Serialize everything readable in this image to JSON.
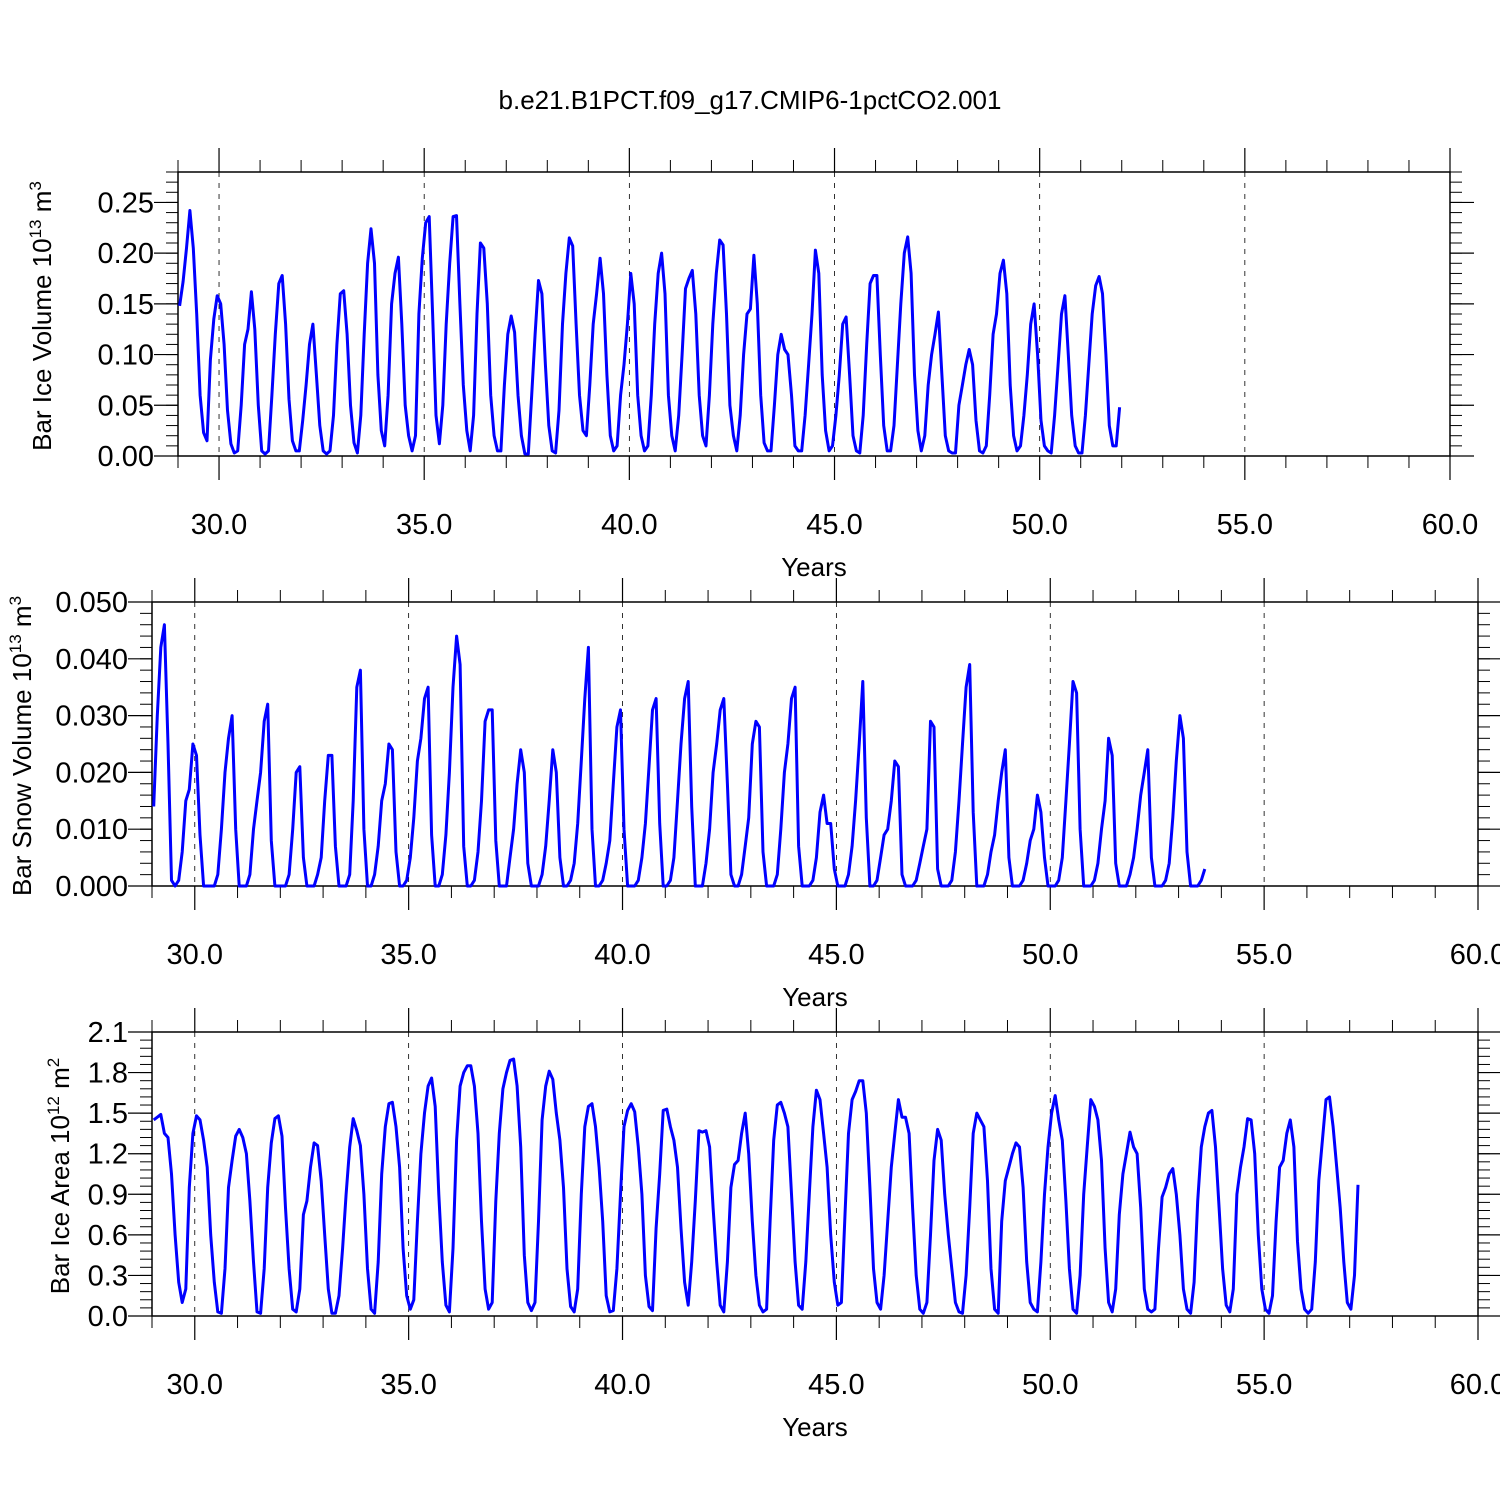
{
  "figure": {
    "title": "b.e21.B1PCT.f09_g17.CMIP6-1pctCO2.001",
    "line_color": "#0000ff"
  },
  "chart_data": [
    {
      "type": "line",
      "xlabel": "Years",
      "ylabel_main": "Bar Ice Volume 10",
      "ylabel_exp": "13",
      "ylabel_unit": " m",
      "ylabel_unit_exp": "3",
      "xlim": [
        29.0,
        60.0
      ],
      "ylim": [
        0.0,
        0.28
      ],
      "x_ticks": [
        "30.0",
        "35.0",
        "40.0",
        "45.0",
        "50.0",
        "55.0",
        "60.0"
      ],
      "y_ticks": [
        "0.00",
        "0.05",
        "0.10",
        "0.15",
        "0.20",
        "0.25"
      ],
      "y_tick_values": [
        0.0,
        0.05,
        0.1,
        0.15,
        0.2,
        0.25
      ],
      "grid": "dashed vertical at major x ticks",
      "series": [
        {
          "x_start": 29.04,
          "x_step": 0.0833,
          "values": [
            0.148,
            0.172,
            0.205,
            0.242,
            0.205,
            0.14,
            0.06,
            0.023,
            0.015,
            0.095,
            0.135,
            0.158,
            0.15,
            0.11,
            0.045,
            0.012,
            0.003,
            0.005,
            0.05,
            0.11,
            0.125,
            0.162,
            0.125,
            0.05,
            0.005,
            0.002,
            0.005,
            0.06,
            0.12,
            0.17,
            0.178,
            0.13,
            0.056,
            0.015,
            0.005,
            0.005,
            0.035,
            0.07,
            0.11,
            0.13,
            0.08,
            0.03,
            0.005,
            0.002,
            0.005,
            0.04,
            0.11,
            0.16,
            0.163,
            0.12,
            0.05,
            0.013,
            0.003,
            0.04,
            0.12,
            0.19,
            0.224,
            0.19,
            0.08,
            0.025,
            0.01,
            0.06,
            0.15,
            0.18,
            0.196,
            0.13,
            0.05,
            0.02,
            0.005,
            0.02,
            0.14,
            0.195,
            0.23,
            0.236,
            0.14,
            0.04,
            0.012,
            0.05,
            0.13,
            0.19,
            0.236,
            0.237,
            0.15,
            0.07,
            0.025,
            0.005,
            0.04,
            0.14,
            0.21,
            0.205,
            0.15,
            0.06,
            0.02,
            0.005,
            0.005,
            0.07,
            0.12,
            0.138,
            0.122,
            0.06,
            0.02,
            0.002,
            0.002,
            0.06,
            0.12,
            0.173,
            0.16,
            0.09,
            0.03,
            0.005,
            0.003,
            0.045,
            0.13,
            0.18,
            0.215,
            0.207,
            0.13,
            0.06,
            0.025,
            0.02,
            0.07,
            0.13,
            0.16,
            0.195,
            0.16,
            0.08,
            0.02,
            0.005,
            0.01,
            0.06,
            0.09,
            0.13,
            0.18,
            0.15,
            0.06,
            0.02,
            0.005,
            0.01,
            0.06,
            0.13,
            0.18,
            0.2,
            0.16,
            0.06,
            0.02,
            0.005,
            0.04,
            0.1,
            0.165,
            0.175,
            0.183,
            0.14,
            0.06,
            0.02,
            0.01,
            0.06,
            0.13,
            0.18,
            0.213,
            0.208,
            0.14,
            0.05,
            0.02,
            0.005,
            0.04,
            0.1,
            0.14,
            0.145,
            0.198,
            0.15,
            0.06,
            0.013,
            0.005,
            0.005,
            0.05,
            0.1,
            0.12,
            0.105,
            0.1,
            0.06,
            0.01,
            0.005,
            0.005,
            0.04,
            0.09,
            0.14,
            0.203,
            0.18,
            0.08,
            0.025,
            0.005,
            0.01,
            0.04,
            0.08,
            0.13,
            0.137,
            0.08,
            0.02,
            0.005,
            0.003,
            0.04,
            0.11,
            0.17,
            0.178,
            0.178,
            0.1,
            0.03,
            0.005,
            0.005,
            0.03,
            0.09,
            0.15,
            0.2,
            0.216,
            0.18,
            0.08,
            0.025,
            0.005,
            0.02,
            0.07,
            0.1,
            0.12,
            0.142,
            0.08,
            0.02,
            0.005,
            0.003,
            0.003,
            0.05,
            0.07,
            0.09,
            0.105,
            0.09,
            0.035,
            0.005,
            0.003,
            0.01,
            0.06,
            0.12,
            0.14,
            0.18,
            0.193,
            0.16,
            0.07,
            0.02,
            0.005,
            0.01,
            0.04,
            0.08,
            0.13,
            0.15,
            0.1,
            0.035,
            0.01,
            0.005,
            0.003,
            0.04,
            0.09,
            0.14,
            0.158,
            0.1,
            0.04,
            0.01,
            0.003,
            0.003,
            0.04,
            0.09,
            0.14,
            0.168,
            0.177,
            0.16,
            0.1,
            0.03,
            0.01,
            0.01,
            0.048
          ]
        }
      ]
    },
    {
      "type": "line",
      "xlabel": "Years",
      "ylabel_main": "Bar Snow Volume 10",
      "ylabel_exp": "13",
      "ylabel_unit": " m",
      "ylabel_unit_exp": "3",
      "xlim": [
        29.0,
        60.0
      ],
      "ylim": [
        0.0,
        0.05
      ],
      "x_ticks": [
        "30.0",
        "35.0",
        "40.0",
        "45.0",
        "50.0",
        "55.0",
        "60.0"
      ],
      "y_ticks": [
        "0.000",
        "0.010",
        "0.020",
        "0.030",
        "0.040",
        "0.050"
      ],
      "y_tick_values": [
        0.0,
        0.01,
        0.02,
        0.03,
        0.04,
        0.05
      ],
      "grid": "dashed vertical at major x ticks",
      "series": [
        {
          "x_start": 29.04,
          "x_step": 0.0833,
          "values": [
            0.014,
            0.03,
            0.042,
            0.046,
            0.025,
            0.001,
            0.0,
            0.001,
            0.006,
            0.015,
            0.017,
            0.025,
            0.023,
            0.009,
            0.0,
            0.0,
            0.0,
            0.0,
            0.002,
            0.01,
            0.02,
            0.026,
            0.03,
            0.01,
            0.0,
            0.0,
            0.0,
            0.002,
            0.01,
            0.015,
            0.02,
            0.029,
            0.032,
            0.008,
            0.0,
            0.0,
            0.0,
            0.0,
            0.002,
            0.01,
            0.02,
            0.021,
            0.005,
            0.0,
            0.0,
            0.0,
            0.002,
            0.005,
            0.015,
            0.023,
            0.023,
            0.007,
            0.0,
            0.0,
            0.0,
            0.002,
            0.015,
            0.035,
            0.038,
            0.01,
            0.0,
            0.0,
            0.002,
            0.007,
            0.015,
            0.018,
            0.025,
            0.024,
            0.006,
            0.0,
            0.0,
            0.001,
            0.005,
            0.012,
            0.022,
            0.026,
            0.033,
            0.035,
            0.009,
            0.0,
            0.0,
            0.002,
            0.009,
            0.02,
            0.035,
            0.044,
            0.039,
            0.007,
            0.0,
            0.0,
            0.001,
            0.006,
            0.015,
            0.029,
            0.031,
            0.031,
            0.008,
            0.0,
            0.0,
            0.0,
            0.005,
            0.01,
            0.018,
            0.024,
            0.02,
            0.004,
            0.0,
            0.0,
            0.0,
            0.002,
            0.007,
            0.015,
            0.024,
            0.02,
            0.005,
            0.0,
            0.0,
            0.001,
            0.004,
            0.011,
            0.022,
            0.033,
            0.042,
            0.01,
            0.0,
            0.0,
            0.001,
            0.004,
            0.008,
            0.018,
            0.028,
            0.031,
            0.01,
            0.0,
            0.0,
            0.0,
            0.001,
            0.005,
            0.011,
            0.021,
            0.031,
            0.033,
            0.011,
            0.0,
            0.0,
            0.001,
            0.005,
            0.015,
            0.025,
            0.033,
            0.036,
            0.014,
            0.0,
            0.0,
            0.0,
            0.004,
            0.01,
            0.02,
            0.025,
            0.031,
            0.033,
            0.018,
            0.002,
            0.0,
            0.0,
            0.002,
            0.007,
            0.012,
            0.025,
            0.029,
            0.028,
            0.006,
            0.0,
            0.0,
            0.0,
            0.002,
            0.01,
            0.02,
            0.025,
            0.033,
            0.035,
            0.007,
            0.0,
            0.0,
            0.0,
            0.001,
            0.005,
            0.013,
            0.016,
            0.011,
            0.011,
            0.003,
            0.0,
            0.0,
            0.0,
            0.002,
            0.007,
            0.015,
            0.025,
            0.036,
            0.012,
            0.0,
            0.0,
            0.001,
            0.005,
            0.009,
            0.01,
            0.015,
            0.022,
            0.021,
            0.002,
            0.0,
            0.0,
            0.0,
            0.001,
            0.004,
            0.007,
            0.01,
            0.029,
            0.028,
            0.003,
            0.0,
            0.0,
            0.0,
            0.001,
            0.006,
            0.015,
            0.025,
            0.035,
            0.039,
            0.013,
            0.0,
            0.0,
            0.0,
            0.002,
            0.006,
            0.009,
            0.015,
            0.02,
            0.024,
            0.005,
            0.0,
            0.0,
            0.0,
            0.001,
            0.004,
            0.008,
            0.01,
            0.016,
            0.013,
            0.005,
            0.0,
            0.0,
            0.0,
            0.001,
            0.005,
            0.015,
            0.025,
            0.036,
            0.034,
            0.01,
            0.0,
            0.0,
            0.0,
            0.001,
            0.004,
            0.01,
            0.015,
            0.026,
            0.023,
            0.004,
            0.0,
            0.0,
            0.0,
            0.002,
            0.005,
            0.01,
            0.016,
            0.02,
            0.024,
            0.005,
            0.0,
            0.0,
            0.0,
            0.001,
            0.004,
            0.012,
            0.022,
            0.03,
            0.026,
            0.006,
            0.0,
            0.0,
            0.0,
            0.001,
            0.003
          ]
        }
      ]
    },
    {
      "type": "line",
      "xlabel": "Years",
      "ylabel_main": "Bar Ice Area 10",
      "ylabel_exp": "12",
      "ylabel_unit": " m",
      "ylabel_unit_exp": "2",
      "xlim": [
        29.0,
        60.0
      ],
      "ylim": [
        0.0,
        2.1
      ],
      "x_ticks": [
        "30.0",
        "35.0",
        "40.0",
        "45.0",
        "50.0",
        "55.0",
        "60.0"
      ],
      "y_ticks": [
        "0.0",
        "0.3",
        "0.6",
        "0.9",
        "1.2",
        "1.5",
        "1.8",
        "2.1"
      ],
      "y_tick_values": [
        0.0,
        0.3,
        0.6,
        0.9,
        1.2,
        1.5,
        1.8,
        2.1
      ],
      "grid": "dashed vertical at major x ticks",
      "series": [
        {
          "x_start": 29.04,
          "x_step": 0.0833,
          "values": [
            1.45,
            1.47,
            1.49,
            1.35,
            1.32,
            1.05,
            0.6,
            0.25,
            0.1,
            0.2,
            0.95,
            1.35,
            1.48,
            1.45,
            1.3,
            1.1,
            0.6,
            0.25,
            0.03,
            0.02,
            0.35,
            0.95,
            1.15,
            1.33,
            1.38,
            1.32,
            1.2,
            0.85,
            0.4,
            0.03,
            0.02,
            0.35,
            0.95,
            1.28,
            1.46,
            1.48,
            1.33,
            0.8,
            0.35,
            0.05,
            0.03,
            0.2,
            0.75,
            0.85,
            1.1,
            1.28,
            1.26,
            1.0,
            0.6,
            0.2,
            0.02,
            0.02,
            0.15,
            0.5,
            0.9,
            1.25,
            1.46,
            1.37,
            1.26,
            0.9,
            0.35,
            0.05,
            0.02,
            0.4,
            1.05,
            1.4,
            1.57,
            1.58,
            1.4,
            1.1,
            0.5,
            0.15,
            0.05,
            0.12,
            0.7,
            1.2,
            1.5,
            1.7,
            1.76,
            1.55,
            0.9,
            0.4,
            0.08,
            0.03,
            0.5,
            1.3,
            1.7,
            1.8,
            1.85,
            1.85,
            1.7,
            1.35,
            0.7,
            0.2,
            0.05,
            0.1,
            0.85,
            1.35,
            1.68,
            1.8,
            1.89,
            1.9,
            1.7,
            1.25,
            0.45,
            0.1,
            0.04,
            0.1,
            0.7,
            1.45,
            1.7,
            1.81,
            1.75,
            1.5,
            1.3,
            0.95,
            0.35,
            0.07,
            0.03,
            0.2,
            0.9,
            1.4,
            1.55,
            1.57,
            1.4,
            1.1,
            0.7,
            0.15,
            0.03,
            0.04,
            0.35,
            0.9,
            1.4,
            1.52,
            1.57,
            1.51,
            1.25,
            0.9,
            0.3,
            0.07,
            0.04,
            0.65,
            1.05,
            1.52,
            1.53,
            1.4,
            1.3,
            1.1,
            0.65,
            0.25,
            0.08,
            0.4,
            0.85,
            1.37,
            1.36,
            1.37,
            1.25,
            0.8,
            0.4,
            0.08,
            0.03,
            0.4,
            0.95,
            1.12,
            1.15,
            1.35,
            1.5,
            1.2,
            0.7,
            0.3,
            0.08,
            0.03,
            0.05,
            0.7,
            1.3,
            1.56,
            1.58,
            1.5,
            1.4,
            0.9,
            0.4,
            0.08,
            0.05,
            0.4,
            0.9,
            1.4,
            1.67,
            1.6,
            1.35,
            1.1,
            0.6,
            0.25,
            0.08,
            0.1,
            0.75,
            1.35,
            1.6,
            1.66,
            1.74,
            1.74,
            1.5,
            0.95,
            0.35,
            0.1,
            0.05,
            0.3,
            0.7,
            1.1,
            1.35,
            1.6,
            1.47,
            1.47,
            1.35,
            0.8,
            0.3,
            0.05,
            0.02,
            0.1,
            0.6,
            1.15,
            1.38,
            1.3,
            0.9,
            0.6,
            0.35,
            0.1,
            0.03,
            0.02,
            0.3,
            0.8,
            1.35,
            1.5,
            1.45,
            1.4,
            1.0,
            0.35,
            0.05,
            0.02,
            0.7,
            1.0,
            1.1,
            1.2,
            1.28,
            1.25,
            0.95,
            0.4,
            0.1,
            0.05,
            0.03,
            0.4,
            0.9,
            1.25,
            1.5,
            1.63,
            1.45,
            1.3,
            0.85,
            0.35,
            0.05,
            0.02,
            0.3,
            0.9,
            1.25,
            1.6,
            1.55,
            1.45,
            1.15,
            0.5,
            0.1,
            0.03,
            0.2,
            0.75,
            1.05,
            1.2,
            1.36,
            1.25,
            1.2,
            0.8,
            0.2,
            0.05,
            0.03,
            0.05,
            0.5,
            0.88,
            0.95,
            1.05,
            1.09,
            0.9,
            0.6,
            0.2,
            0.05,
            0.02,
            0.25,
            0.85,
            1.25,
            1.4,
            1.5,
            1.52,
            1.25,
            0.8,
            0.35,
            0.08,
            0.03,
            0.2,
            0.9,
            1.1,
            1.25,
            1.46,
            1.45,
            1.2,
            0.6,
            0.2,
            0.05,
            0.02,
            0.15,
            0.7,
            1.1,
            1.15,
            1.35,
            1.45,
            1.25,
            0.55,
            0.2,
            0.05,
            0.02,
            0.05,
            0.4,
            1.0,
            1.3,
            1.6,
            1.62,
            1.4,
            1.1,
            0.8,
            0.4,
            0.1,
            0.05,
            0.3,
            0.97
          ]
        }
      ]
    }
  ]
}
